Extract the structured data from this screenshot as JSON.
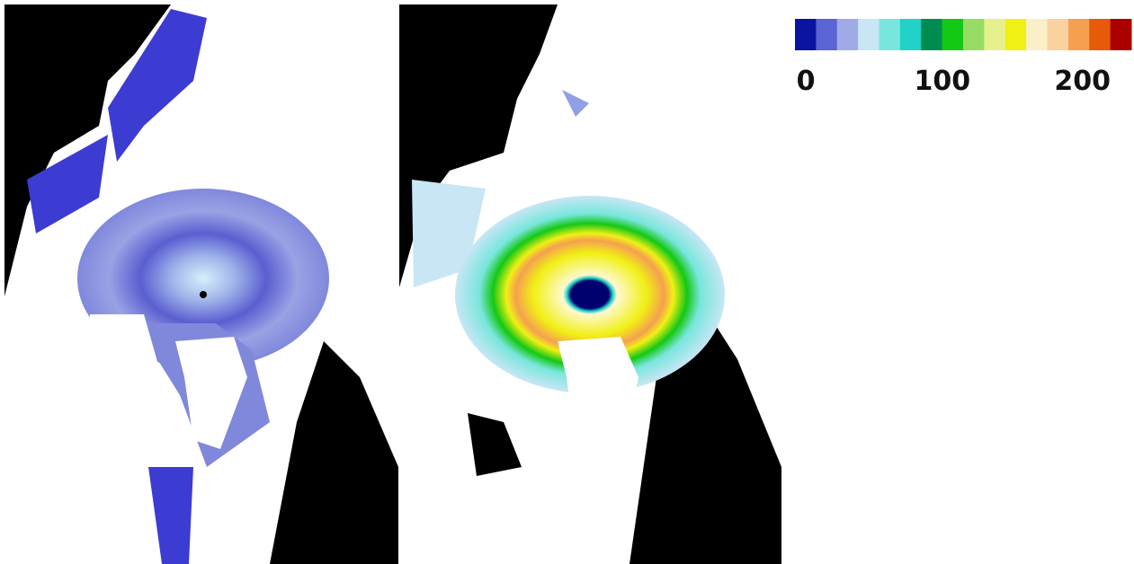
{
  "colorbar": {
    "lim": [
      0,
      240
    ],
    "ticks": [
      0,
      100,
      200
    ],
    "colors": [
      "#0a14a0",
      "#5a64d2",
      "#a0aae6",
      "#c8e6f5",
      "#78e6dc",
      "#20d2c8",
      "#008c50",
      "#14c814",
      "#96dc64",
      "#e6f08c",
      "#f0f014",
      "#faf0c8",
      "#fad2a0",
      "#f5a050",
      "#e65a0a",
      "#aa0000"
    ]
  }
}
